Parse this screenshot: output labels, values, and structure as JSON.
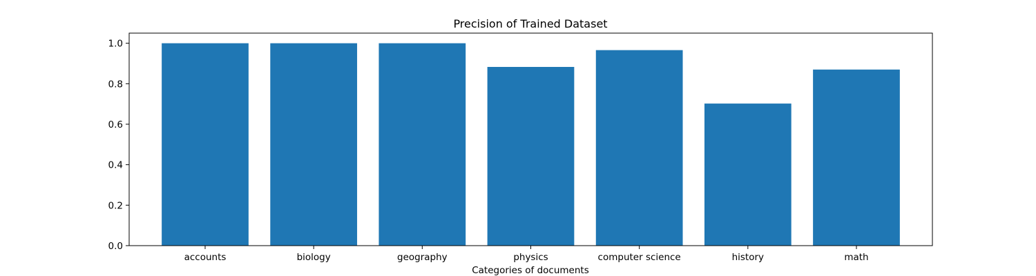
{
  "chart_data": {
    "type": "bar",
    "title": "Precision of Trained Dataset",
    "xlabel": "Categories of documents",
    "ylabel": "",
    "categories": [
      "accounts",
      "biology",
      "geography",
      "physics",
      "computer science",
      "history",
      "math"
    ],
    "values": [
      1.0,
      1.0,
      1.0,
      0.883,
      0.966,
      0.702,
      0.87
    ],
    "ylim": [
      0,
      1.05
    ],
    "yticks": [
      0.0,
      0.2,
      0.4,
      0.6,
      0.8,
      1.0
    ],
    "ytick_labels": [
      "0.0",
      "0.2",
      "0.4",
      "0.6",
      "0.8",
      "1.0"
    ],
    "bar_color": "#1f77b4",
    "grid": false,
    "legend": "none"
  }
}
